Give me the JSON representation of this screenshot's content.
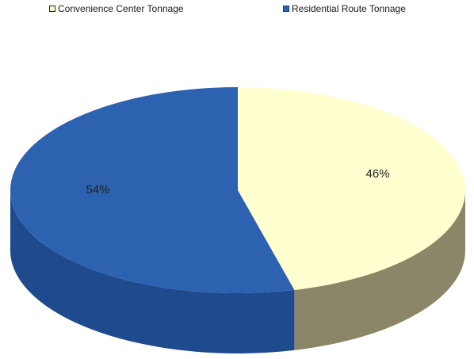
{
  "chart_data": {
    "type": "pie",
    "is_3d": true,
    "title": "",
    "legend_position": "top",
    "slices": [
      {
        "label": "Convenience Center Tonnage",
        "value": 46,
        "display": "46%",
        "color": "#ffffcf",
        "side_color": "#8c8668"
      },
      {
        "label": "Residential Route Tonnage",
        "value": 54,
        "display": "54%",
        "color": "#2d62b1",
        "side_color": "#1f4b8e"
      }
    ]
  }
}
